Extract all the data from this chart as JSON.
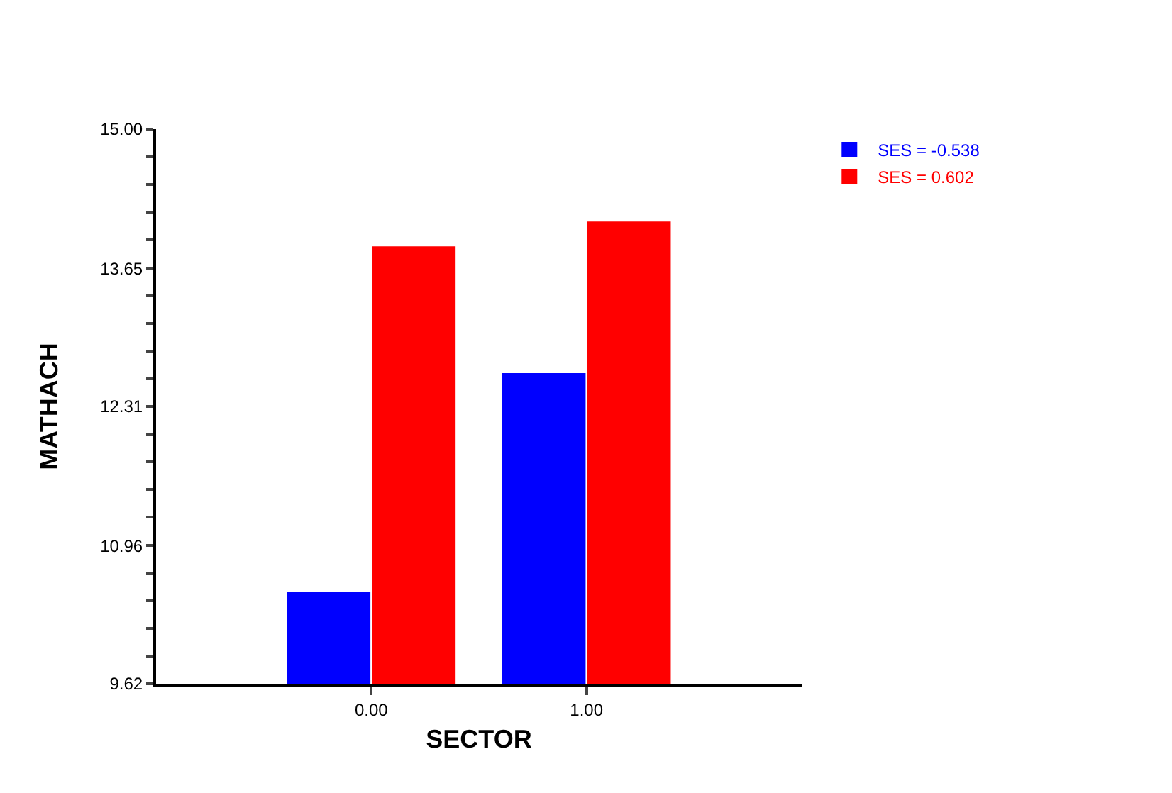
{
  "chart_data": {
    "type": "bar",
    "xlabel": "SECTOR",
    "ylabel": "MATHACH",
    "categories": [
      "0.00",
      "1.00"
    ],
    "series": [
      {
        "name": "SES = -0.538",
        "color": "#0000ff",
        "values": [
          10.52,
          12.64
        ]
      },
      {
        "name": "SES = 0.602",
        "color": "#ff0000",
        "values": [
          13.87,
          14.11
        ]
      }
    ],
    "ylim": [
      9.62,
      15.0
    ],
    "yticks": [
      9.62,
      {
        "value": 9.889,
        "label": null
      },
      {
        "value": 10.158,
        "label": null
      },
      {
        "value": 10.427,
        "label": null
      },
      {
        "value": 10.696,
        "label": null
      },
      10.96,
      {
        "value": 11.234,
        "label": null
      },
      {
        "value": 11.503,
        "label": null
      },
      {
        "value": 11.772,
        "label": null
      },
      {
        "value": 12.041,
        "label": null
      },
      12.31,
      {
        "value": 12.579,
        "label": null
      },
      {
        "value": 12.848,
        "label": null
      },
      {
        "value": 13.117,
        "label": null
      },
      {
        "value": 13.386,
        "label": null
      },
      13.65,
      {
        "value": 13.924,
        "label": null
      },
      {
        "value": 14.193,
        "label": null
      },
      {
        "value": 14.462,
        "label": null
      },
      {
        "value": 14.731,
        "label": null
      },
      "15.00"
    ],
    "legend": "top right"
  }
}
